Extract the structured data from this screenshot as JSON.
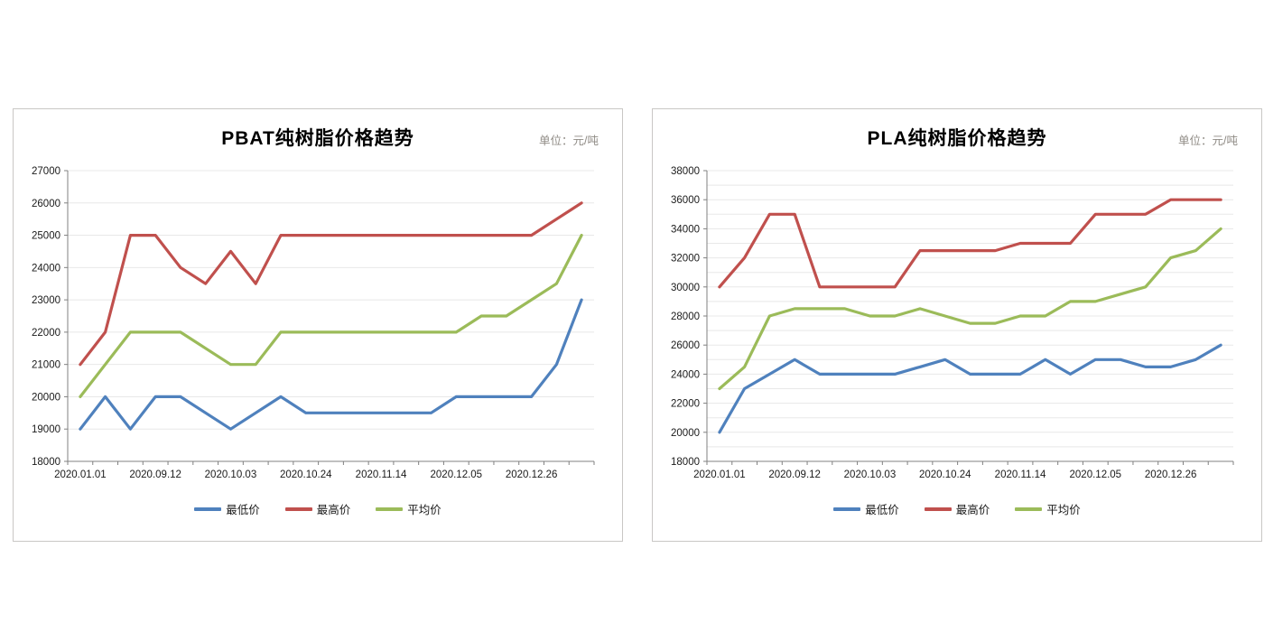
{
  "chart_data": [
    {
      "type": "line",
      "title": "PBAT纯树脂价格趋势",
      "unit_label": "单位：元/吨",
      "n_points": 21,
      "x_tick_labels": [
        "2020.01.01",
        "2020.09.12",
        "2020.10.03",
        "2020.10.24",
        "2020.11.14",
        "2020.12.05",
        "2020.12.26"
      ],
      "x_label_point_indices": [
        0,
        3,
        6,
        9,
        12,
        15,
        18
      ],
      "ylim": [
        18000,
        27000
      ],
      "y_grid_step": 1000,
      "y_label_step": 1000,
      "grid": true,
      "legend_position": "bottom",
      "series": [
        {
          "name": "最低价",
          "color": "#4F81BD",
          "values": [
            19000,
            20000,
            19000,
            20000,
            20000,
            19500,
            19000,
            19500,
            20000,
            19500,
            19500,
            19500,
            19500,
            19500,
            19500,
            20000,
            20000,
            20000,
            20000,
            21000,
            23000
          ]
        },
        {
          "name": "最高价",
          "color": "#C0504D",
          "values": [
            21000,
            22000,
            25000,
            25000,
            24000,
            23500,
            24500,
            23500,
            25000,
            25000,
            25000,
            25000,
            25000,
            25000,
            25000,
            25000,
            25000,
            25000,
            25000,
            25500,
            26000
          ]
        },
        {
          "name": "平均价",
          "color": "#9BBB59",
          "values": [
            20000,
            21000,
            22000,
            22000,
            22000,
            21500,
            21000,
            21000,
            22000,
            22000,
            22000,
            22000,
            22000,
            22000,
            22000,
            22000,
            22500,
            22500,
            23000,
            23500,
            25000
          ]
        }
      ]
    },
    {
      "type": "line",
      "title": "PLA纯树脂价格趋势",
      "unit_label": "单位：元/吨",
      "n_points": 21,
      "x_tick_labels": [
        "2020.01.01",
        "2020.09.12",
        "2020.10.03",
        "2020.10.24",
        "2020.11.14",
        "2020.12.05",
        "2020.12.26"
      ],
      "x_label_point_indices": [
        0,
        3,
        6,
        9,
        12,
        15,
        18
      ],
      "ylim": [
        18000,
        38000
      ],
      "y_grid_step": 1000,
      "y_label_step": 2000,
      "grid": true,
      "legend_position": "bottom",
      "series": [
        {
          "name": "最低价",
          "color": "#4F81BD",
          "values": [
            20000,
            23000,
            24000,
            25000,
            24000,
            24000,
            24000,
            24000,
            24500,
            25000,
            24000,
            24000,
            24000,
            25000,
            24000,
            25000,
            25000,
            24500,
            24500,
            25000,
            26000
          ]
        },
        {
          "name": "最高价",
          "color": "#C0504D",
          "values": [
            30000,
            32000,
            35000,
            35000,
            30000,
            30000,
            30000,
            30000,
            32500,
            32500,
            32500,
            32500,
            33000,
            33000,
            33000,
            35000,
            35000,
            35000,
            36000,
            36000,
            36000
          ]
        },
        {
          "name": "平均价",
          "color": "#9BBB59",
          "values": [
            23000,
            24500,
            28000,
            28500,
            28500,
            28500,
            28000,
            28000,
            28500,
            28000,
            27500,
            27500,
            28000,
            28000,
            29000,
            29000,
            29500,
            30000,
            32000,
            32500,
            34000
          ]
        }
      ]
    }
  ],
  "style": {
    "axis_color": "#808080",
    "grid_color": "#e8e8e8",
    "tick_label_color": "#1a1a1a"
  }
}
